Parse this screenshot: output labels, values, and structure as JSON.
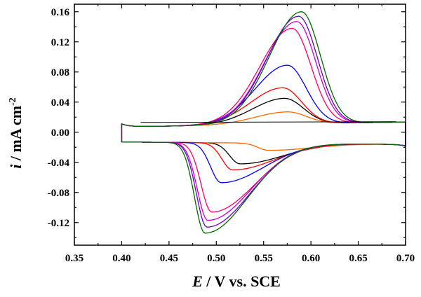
{
  "chart_data": {
    "type": "line",
    "xlabel": {
      "symbol": "E",
      "rest": " / V vs. SCE"
    },
    "ylabel": {
      "symbol": "i",
      "rest": " / mA cm",
      "sup": "-2"
    },
    "xlim": [
      0.35,
      0.7
    ],
    "ylim": [
      -0.15,
      0.17
    ],
    "xticks": [
      0.35,
      0.4,
      0.45,
      0.5,
      0.55,
      0.6,
      0.65,
      0.7
    ],
    "xtick_labels": [
      "0.35",
      "0.40",
      "0.45",
      "0.50",
      "0.55",
      "0.60",
      "0.65",
      "0.70"
    ],
    "yticks": [
      -0.12,
      -0.08,
      -0.04,
      0.0,
      0.04,
      0.08,
      0.12,
      0.16
    ],
    "ytick_labels": [
      "-0.12",
      "-0.08",
      "-0.04",
      "0.00",
      "0.04",
      "0.08",
      "0.12",
      "0.16"
    ],
    "grid": false,
    "legend": "none",
    "series": [
      {
        "color": "#000000",
        "E_anodic": 0.572,
        "i_anodic": 0.045,
        "E_cathodic": 0.525,
        "i_cathodic": -0.042
      },
      {
        "color": "#ff6600",
        "E_anodic": 0.575,
        "i_anodic": 0.027,
        "E_cathodic": 0.555,
        "i_cathodic": -0.024
      },
      {
        "color": "#ff0000",
        "E_anodic": 0.57,
        "i_anodic": 0.059,
        "E_cathodic": 0.517,
        "i_cathodic": -0.05
      },
      {
        "color": "#0000ff",
        "E_anodic": 0.575,
        "i_anodic": 0.089,
        "E_cathodic": 0.505,
        "i_cathodic": -0.067
      },
      {
        "color": "#ff0066",
        "E_anodic": 0.58,
        "i_anodic": 0.138,
        "E_cathodic": 0.495,
        "i_cathodic": -0.106
      },
      {
        "color": "#cc00cc",
        "E_anodic": 0.585,
        "i_anodic": 0.147,
        "E_cathodic": 0.491,
        "i_cathodic": -0.117
      },
      {
        "color": "#6600cc",
        "E_anodic": 0.587,
        "i_anodic": 0.154,
        "E_cathodic": 0.49,
        "i_cathodic": -0.126
      },
      {
        "color": "#006600",
        "E_anodic": 0.59,
        "i_anodic": 0.16,
        "E_cathodic": 0.488,
        "i_cathodic": -0.134
      }
    ]
  }
}
